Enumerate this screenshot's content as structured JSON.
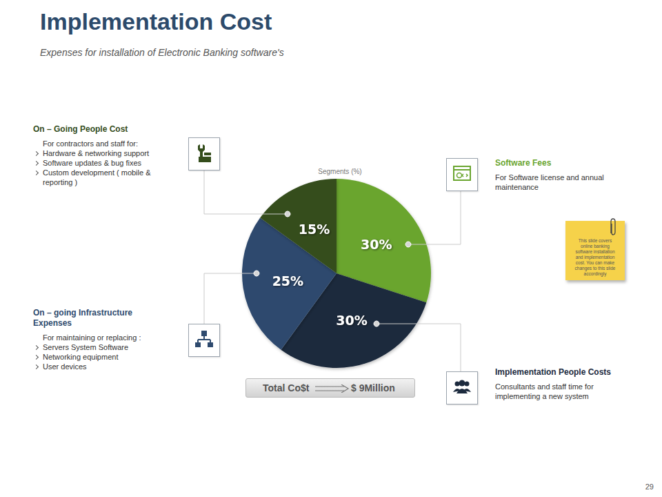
{
  "chart_data": {
    "type": "pie",
    "title": "Implementation Cost",
    "subtitle": "Expenses for installation of Electronic Banking software's",
    "chart_title": "Segments (%)",
    "categories": [
      "Software Fees",
      "Implementation People Costs",
      "On – going Infrastructure Expenses",
      "On – Going People Cost"
    ],
    "values": [
      30,
      30,
      25,
      15
    ],
    "value_labels": [
      "30%",
      "30%",
      "25%",
      "15%"
    ],
    "colors": [
      "#6aa52f",
      "#1c2a3e",
      "#2e4a6e",
      "#344d1c"
    ],
    "data_labels": true,
    "descriptions": [
      {
        "text": "For Software license and annual maintenance",
        "bullets": []
      },
      {
        "text": "Consultants and staff time for implementing a new system",
        "bullets": []
      },
      {
        "text": "For maintaining or replacing :",
        "bullets": [
          "Servers System Software",
          "Networking equipment",
          "User devices"
        ]
      },
      {
        "text": "For contractors and staff for:",
        "bullets": [
          "Hardware & networking support",
          "Software updates & bug fixes",
          "Custom development ( mobile & reporting )"
        ]
      }
    ],
    "total_label": "Total Co$t",
    "total_value_label": "$ 9Million",
    "note": "This slide covers online banking software installation and implementation cost. You can make changes to this slide accordingly",
    "page": 29
  }
}
